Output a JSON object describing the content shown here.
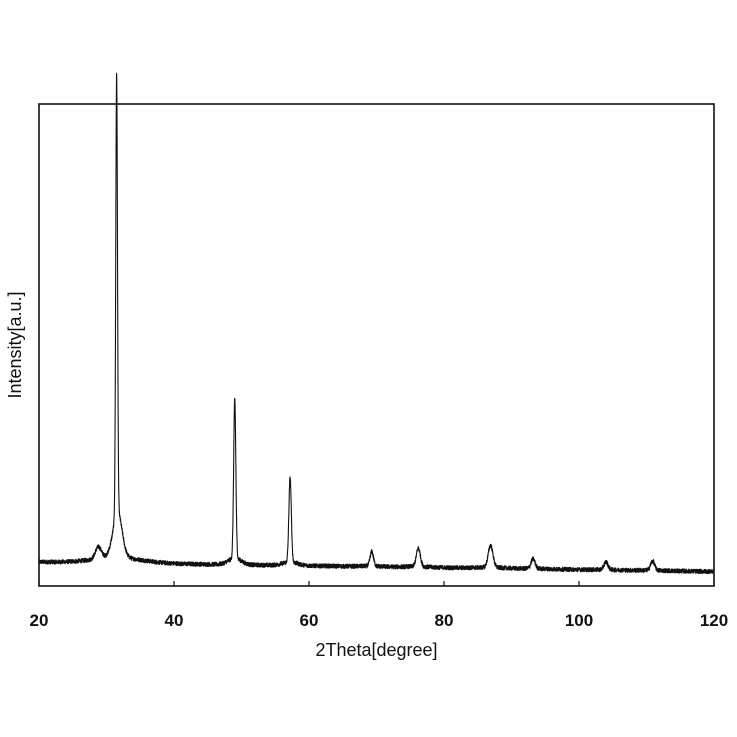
{
  "chart_data": {
    "type": "line",
    "xlabel": "2Theta[degree]",
    "ylabel": "Intensity[a.u.]",
    "xlim": [
      20,
      120
    ],
    "ylim": [
      0,
      100
    ],
    "xticks": [
      20,
      40,
      60,
      80,
      100,
      120
    ],
    "y_tick_labels": false,
    "grid": false,
    "legend": false,
    "line_color": "#111111",
    "background": "#ffffff",
    "baseline": {
      "start_x": 20,
      "start_y": 5.0,
      "end_x": 120,
      "end_y": 3.0,
      "noise": 0.9
    },
    "peaks": [
      {
        "x": 28.8,
        "height": 2.5,
        "width": 0.45
      },
      {
        "x": 31.5,
        "height": 91,
        "width": 0.13
      },
      {
        "x": 31.7,
        "height": 6,
        "width": 0.6
      },
      {
        "x": 49.0,
        "height": 33,
        "width": 0.16
      },
      {
        "x": 57.2,
        "height": 17.5,
        "width": 0.18
      },
      {
        "x": 69.3,
        "height": 3.0,
        "width": 0.25
      },
      {
        "x": 76.2,
        "height": 3.8,
        "width": 0.3
      },
      {
        "x": 86.9,
        "height": 4.6,
        "width": 0.35
      },
      {
        "x": 93.2,
        "height": 2.0,
        "width": 0.3
      },
      {
        "x": 104.0,
        "height": 1.6,
        "width": 0.3
      },
      {
        "x": 110.9,
        "height": 1.9,
        "width": 0.3
      }
    ]
  }
}
